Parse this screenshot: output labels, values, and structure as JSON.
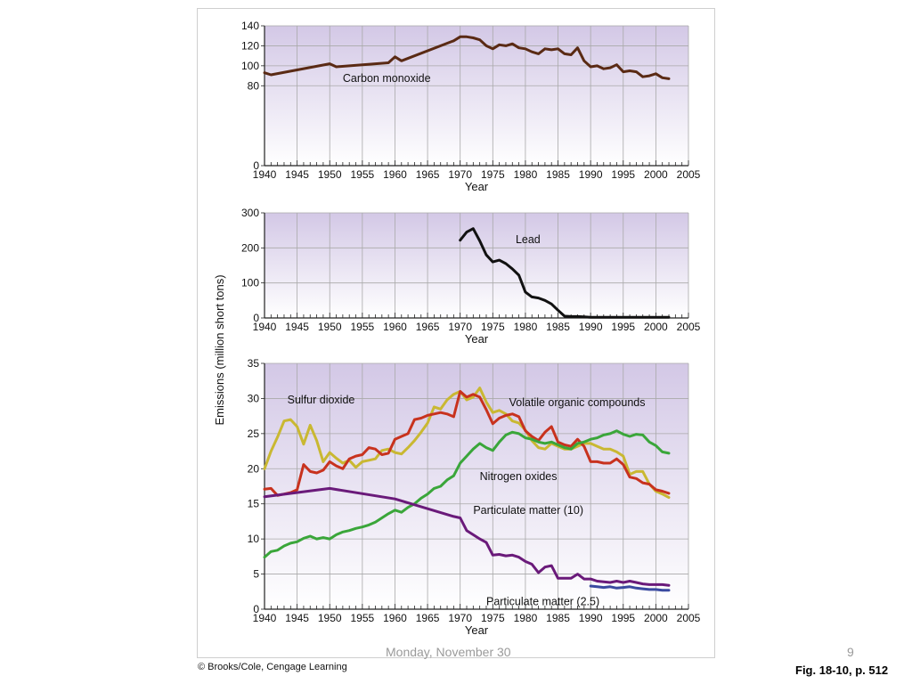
{
  "slide": {
    "footer_date": "Monday, November 30",
    "page_number": "9",
    "credit": "© Brooks/Cole, Cengage Learning",
    "figure_ref": "Fig. 18-10, p. 512"
  },
  "chart_data": [
    {
      "type": "line",
      "title": "",
      "xlabel": "Year",
      "ylabel": "Emissions (million short tons)",
      "xlim": [
        1940,
        2005
      ],
      "ylim": [
        0,
        140
      ],
      "yticks": [
        0,
        80,
        100,
        120,
        140
      ],
      "xticks": [
        1940,
        1945,
        1950,
        1955,
        1960,
        1965,
        1970,
        1975,
        1980,
        1985,
        1990,
        1995,
        2000,
        2005
      ],
      "grid": true,
      "series": [
        {
          "name": "Carbon monoxide",
          "color": "#5a2a14",
          "x": [
            1940,
            1941,
            1950,
            1951,
            1959,
            1960,
            1961,
            1969,
            1970,
            1971,
            1972,
            1973,
            1974,
            1975,
            1976,
            1977,
            1978,
            1979,
            1980,
            1981,
            1982,
            1983,
            1984,
            1985,
            1986,
            1987,
            1988,
            1989,
            1990,
            1991,
            1992,
            1993,
            1994,
            1995,
            1996,
            1997,
            1998,
            1999,
            2000,
            2001,
            2002
          ],
          "y": [
            93,
            91,
            102,
            99,
            103,
            109,
            105,
            125,
            129,
            129,
            128,
            126,
            120,
            117,
            121,
            120,
            122,
            118,
            117,
            114,
            112,
            117,
            116,
            117,
            112,
            111,
            118,
            105,
            99,
            100,
            97,
            98,
            101,
            94,
            95,
            94,
            89,
            90,
            92,
            88,
            87
          ]
        }
      ],
      "annotations": [
        {
          "text": "Carbon monoxide",
          "x": 1952,
          "y": 84
        }
      ]
    },
    {
      "type": "line",
      "title": "",
      "xlabel": "Year",
      "ylabel": "Emissions (million short tons)",
      "xlim": [
        1940,
        2005
      ],
      "ylim": [
        0,
        300
      ],
      "yticks": [
        0,
        100,
        200,
        300
      ],
      "xticks": [
        1940,
        1945,
        1950,
        1955,
        1960,
        1965,
        1970,
        1975,
        1980,
        1985,
        1990,
        1995,
        2000,
        2005
      ],
      "grid": true,
      "series": [
        {
          "name": "Lead",
          "color": "#111111",
          "x": [
            1970,
            1971,
            1972,
            1973,
            1974,
            1975,
            1976,
            1977,
            1978,
            1979,
            1980,
            1981,
            1982,
            1983,
            1984,
            1985,
            1986,
            1987,
            1988,
            1989,
            1990,
            1995,
            2000,
            2002
          ],
          "y": [
            222,
            245,
            255,
            220,
            180,
            160,
            165,
            155,
            140,
            122,
            74,
            60,
            57,
            50,
            40,
            22,
            5,
            4,
            4,
            3,
            2,
            2,
            2,
            2
          ]
        }
      ],
      "annotations": [
        {
          "text": "Lead",
          "x": 1978.5,
          "y": 213
        }
      ]
    },
    {
      "type": "line",
      "title": "",
      "xlabel": "Year",
      "ylabel": "Emissions (million short tons)",
      "xlim": [
        1940,
        2005
      ],
      "ylim": [
        0,
        35
      ],
      "yticks": [
        0,
        5,
        10,
        15,
        20,
        25,
        30,
        35
      ],
      "xticks": [
        1940,
        1945,
        1950,
        1955,
        1960,
        1965,
        1970,
        1975,
        1980,
        1985,
        1990,
        1995,
        2000,
        2005
      ],
      "grid": true,
      "series": [
        {
          "name": "Sulfur dioxide",
          "color": "#c9b832",
          "x": [
            1940,
            1941,
            1942,
            1943,
            1944,
            1945,
            1946,
            1947,
            1948,
            1949,
            1950,
            1951,
            1952,
            1953,
            1954,
            1955,
            1956,
            1957,
            1958,
            1959,
            1960,
            1961,
            1962,
            1963,
            1964,
            1965,
            1966,
            1967,
            1968,
            1969,
            1970,
            1971,
            1972,
            1973,
            1974,
            1975,
            1976,
            1977,
            1978,
            1979,
            1980,
            1981,
            1982,
            1983,
            1984,
            1985,
            1986,
            1987,
            1988,
            1989,
            1990,
            1991,
            1992,
            1993,
            1994,
            1995,
            1996,
            1997,
            1998,
            1999,
            2000,
            2001,
            2002
          ],
          "y": [
            20,
            22.5,
            24.5,
            26.8,
            27,
            26,
            23.5,
            26.2,
            24,
            21,
            22.3,
            21.5,
            20.8,
            21.2,
            20.2,
            21.0,
            21.2,
            21.4,
            22.6,
            22.8,
            22.3,
            22.1,
            23.0,
            24.0,
            25.2,
            26.5,
            28.8,
            28.5,
            29.8,
            30.6,
            31.0,
            29.8,
            30.2,
            31.5,
            29.5,
            28.0,
            28.3,
            27.8,
            26.8,
            26.5,
            25.5,
            24.0,
            23.0,
            22.8,
            23.6,
            23.2,
            22.8,
            22.8,
            23.2,
            23.6,
            23.6,
            23.2,
            22.8,
            22.8,
            22.4,
            21.8,
            19.2,
            19.6,
            19.6,
            17.8,
            16.8,
            16.4,
            15.9
          ]
        },
        {
          "name": "Volatile organic compounds",
          "color": "#c8321e",
          "x": [
            1940,
            1941,
            1942,
            1943,
            1944,
            1945,
            1946,
            1947,
            1948,
            1949,
            1950,
            1951,
            1952,
            1953,
            1954,
            1955,
            1956,
            1957,
            1958,
            1959,
            1960,
            1961,
            1962,
            1963,
            1964,
            1965,
            1966,
            1967,
            1968,
            1969,
            1970,
            1971,
            1972,
            1973,
            1974,
            1975,
            1976,
            1977,
            1978,
            1979,
            1980,
            1981,
            1982,
            1983,
            1984,
            1985,
            1986,
            1987,
            1988,
            1989,
            1990,
            1991,
            1992,
            1993,
            1994,
            1995,
            1996,
            1997,
            1998,
            1999,
            2000,
            2001,
            2002
          ],
          "y": [
            17.1,
            17.2,
            16.2,
            16.4,
            16.6,
            17.0,
            20.6,
            19.6,
            19.4,
            19.8,
            21.0,
            20.4,
            20.0,
            21.4,
            21.8,
            22.0,
            23.0,
            22.8,
            22.0,
            22.2,
            24.2,
            24.6,
            25.0,
            27.0,
            27.2,
            27.6,
            27.8,
            28.0,
            27.8,
            27.4,
            31.0,
            30.2,
            30.6,
            30.2,
            28.4,
            26.4,
            27.2,
            27.6,
            27.8,
            27.4,
            25.4,
            24.6,
            24.0,
            25.2,
            26.0,
            23.8,
            23.4,
            23.2,
            24.2,
            23.2,
            21.0,
            21.0,
            20.8,
            20.8,
            21.4,
            20.6,
            18.8,
            18.6,
            18.0,
            17.8,
            17.0,
            16.8,
            16.5
          ]
        },
        {
          "name": "Nitrogen oxides",
          "color": "#3aa63a",
          "x": [
            1940,
            1941,
            1942,
            1943,
            1944,
            1945,
            1946,
            1947,
            1948,
            1949,
            1950,
            1951,
            1952,
            1953,
            1954,
            1955,
            1956,
            1957,
            1958,
            1959,
            1960,
            1961,
            1962,
            1963,
            1964,
            1965,
            1966,
            1967,
            1968,
            1969,
            1970,
            1971,
            1972,
            1973,
            1974,
            1975,
            1976,
            1977,
            1978,
            1979,
            1980,
            1981,
            1982,
            1983,
            1984,
            1985,
            1986,
            1987,
            1988,
            1989,
            1990,
            1991,
            1992,
            1993,
            1994,
            1995,
            1996,
            1997,
            1998,
            1999,
            2000,
            2001,
            2002
          ],
          "y": [
            7.4,
            8.2,
            8.4,
            9.0,
            9.4,
            9.6,
            10.1,
            10.4,
            10.0,
            10.2,
            10.0,
            10.6,
            11.0,
            11.2,
            11.5,
            11.7,
            12.0,
            12.4,
            13.0,
            13.6,
            14.1,
            13.8,
            14.5,
            15.0,
            15.8,
            16.4,
            17.2,
            17.5,
            18.4,
            19.0,
            20.8,
            21.8,
            22.8,
            23.6,
            23.0,
            22.6,
            23.8,
            24.8,
            25.2,
            25.0,
            24.4,
            24.2,
            23.8,
            23.6,
            23.8,
            23.4,
            23.0,
            22.8,
            23.6,
            23.8,
            24.2,
            24.4,
            24.8,
            25.0,
            25.4,
            24.9,
            24.6,
            24.9,
            24.8,
            23.8,
            23.3,
            22.4,
            22.2
          ]
        },
        {
          "name": "Particulate matter (10)",
          "color": "#6a1a7a",
          "x": [
            1940,
            1950,
            1960,
            1969,
            1970,
            1971,
            1972,
            1973,
            1974,
            1975,
            1976,
            1977,
            1978,
            1979,
            1980,
            1981,
            1982,
            1983,
            1984,
            1985,
            1986,
            1987,
            1988,
            1989,
            1990,
            1991,
            1992,
            1993,
            1994,
            1995,
            1996,
            1997,
            1998,
            1999,
            2000,
            2001,
            2002
          ],
          "y": [
            16.0,
            17.2,
            15.7,
            13.2,
            13.0,
            11.2,
            10.6,
            10.0,
            9.5,
            7.7,
            7.8,
            7.6,
            7.7,
            7.4,
            6.8,
            6.4,
            5.2,
            6.0,
            6.2,
            4.4,
            4.4,
            4.4,
            5.0,
            4.3,
            4.3,
            4.0,
            3.9,
            3.8,
            4.0,
            3.8,
            4.0,
            3.8,
            3.6,
            3.5,
            3.5,
            3.5,
            3.4
          ]
        },
        {
          "name": "Particulate matter (2.5)",
          "color": "#3a4aa0",
          "x": [
            1990,
            1991,
            1992,
            1993,
            1994,
            1995,
            1996,
            1997,
            1998,
            1999,
            2000,
            2001,
            2002
          ],
          "y": [
            3.3,
            3.2,
            3.1,
            3.2,
            3.0,
            3.1,
            3.2,
            3.0,
            2.9,
            2.8,
            2.8,
            2.7,
            2.7
          ]
        }
      ],
      "annotations": [
        {
          "text": "Sulfur dioxide",
          "x": 1943.5,
          "y": 29.3
        },
        {
          "text": "Volatile organic compounds",
          "x": 1977.5,
          "y": 28.9
        },
        {
          "text": "Nitrogen oxides",
          "x": 1973,
          "y": 18.4
        },
        {
          "text": "Particulate matter (10)",
          "x": 1972,
          "y": 13.6
        },
        {
          "text": "Particulate matter (2.5)",
          "x": 1974,
          "y": 0.6
        }
      ]
    }
  ]
}
